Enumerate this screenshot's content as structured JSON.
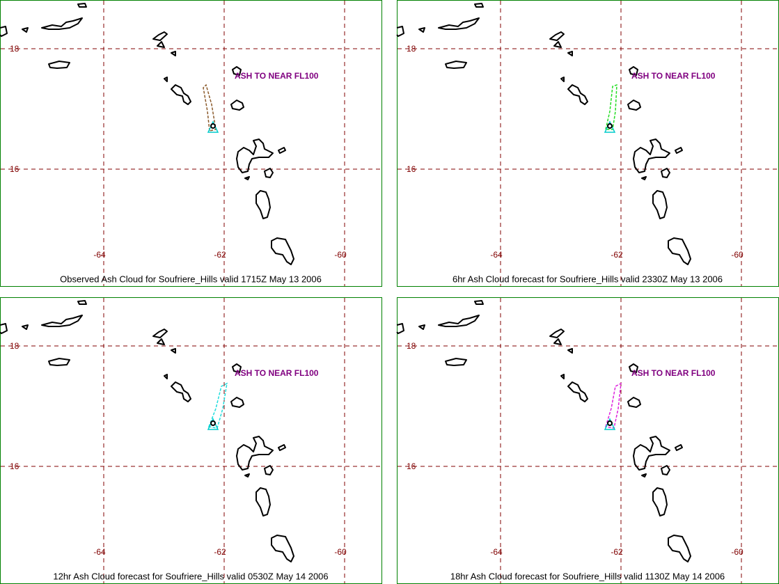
{
  "panels": [
    {
      "caption": "Observed Ash Cloud for Soufriere_Hills valid 1715Z May 13 2006",
      "annotation": "ASH TO NEAR FL100",
      "ash_color": "#8b5a2b"
    },
    {
      "caption": "6hr Ash Cloud forecast for Soufriere_Hills valid 2330Z May 13 2006",
      "annotation": "ASH TO NEAR FL100",
      "ash_color": "#22dd22"
    },
    {
      "caption": "12hr Ash Cloud forecast for Soufriere_Hills valid 0530Z May 14 2006",
      "annotation": "ASH TO NEAR FL100",
      "ash_color": "#22dddd"
    },
    {
      "caption": "18hr Ash Cloud forecast for Soufriere_Hills valid 1130Z May 14 2006",
      "annotation": "ASH TO NEAR FL100",
      "ash_color": "#dd22dd"
    }
  ],
  "lat_labels": [
    18,
    16
  ],
  "lon_labels": [
    -64,
    -62,
    -60
  ]
}
